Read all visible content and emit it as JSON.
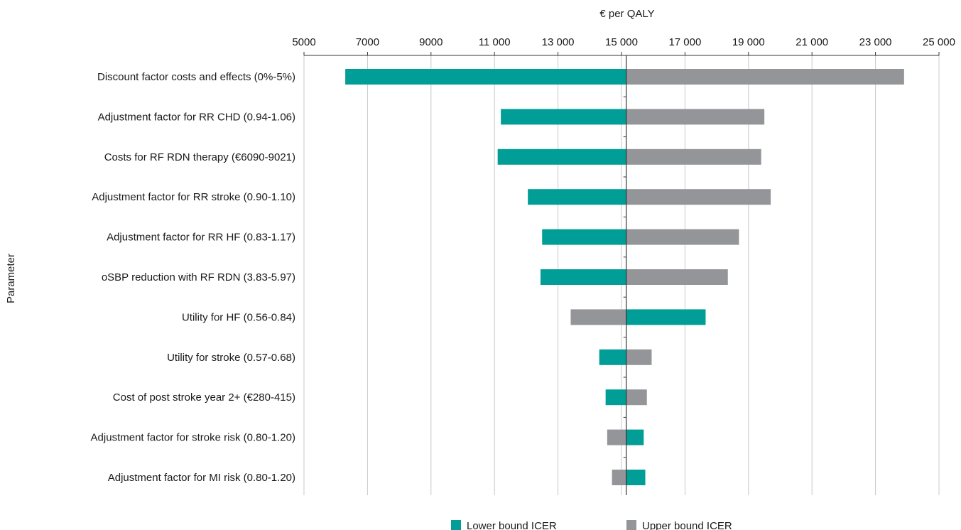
{
  "chart_data": {
    "type": "bar",
    "orientation": "horizontal",
    "subtype": "tornado",
    "xlabel": "€ per QALY",
    "ylabel": "Parameter",
    "xlim": [
      5000,
      25000
    ],
    "x_ticks": [
      5000,
      7000,
      9000,
      11000,
      13000,
      15000,
      17000,
      19000,
      21000,
      23000,
      25000
    ],
    "x_tick_labels": [
      "5000",
      "7000",
      "9000",
      "11 000",
      "13 000",
      "15 000",
      "17 000",
      "19 000",
      "21 000",
      "23 000",
      "25 000"
    ],
    "base_value": 15150,
    "grid": true,
    "legend_position": "bottom",
    "colors": {
      "lower": "#009e96",
      "upper": "#939598",
      "grid": "#c8c8c8"
    },
    "series": [
      {
        "name": "Lower bound ICER",
        "color_key": "lower"
      },
      {
        "name": "Upper bound ICER",
        "color_key": "upper"
      }
    ],
    "categories": [
      "Discount factor costs and effects (0%-5%)",
      "Adjustment factor for RR CHD (0.94-1.06)",
      "Costs for RF RDN therapy (€6090-9021)",
      "Adjustment factor for RR stroke (0.90-1.10)",
      "Adjustment factor for RR HF (0.83-1.17)",
      "oSBP reduction with RF RDN (3.83-5.97)",
      "Utility for HF (0.56-0.84)",
      "Utility for stroke (0.57-0.68)",
      "Cost of post stroke year 2+ (€280-415)",
      "Adjustment factor for stroke risk (0.80-1.20)",
      "Adjustment factor for MI risk (0.80-1.20)"
    ],
    "lower_bound_icer": [
      6300,
      11200,
      11100,
      12050,
      12500,
      12450,
      17650,
      14300,
      14500,
      15700,
      15750
    ],
    "upper_bound_icer": [
      23900,
      19500,
      19400,
      19700,
      18700,
      18350,
      13400,
      15950,
      15800,
      14550,
      14700
    ]
  }
}
